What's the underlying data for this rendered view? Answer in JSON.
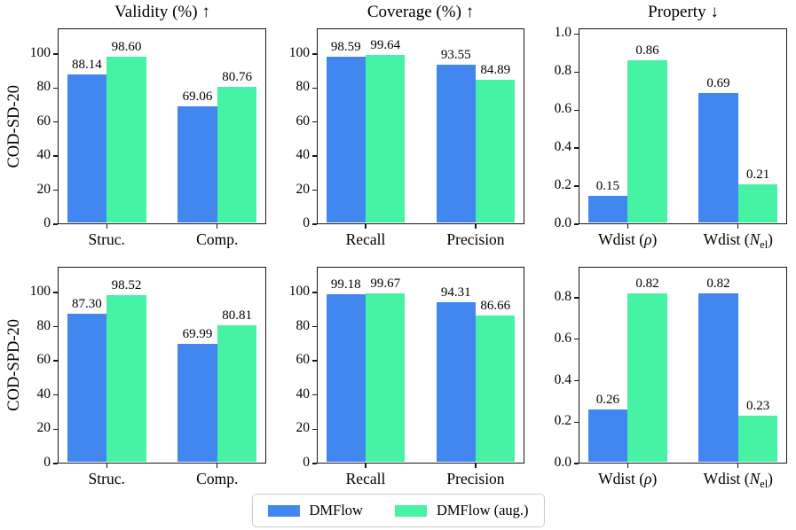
{
  "figure": {
    "background": "#ffffff"
  },
  "legend": {
    "position": "lower center",
    "items": [
      {
        "label": "DMFlow",
        "color": "#4287f0"
      },
      {
        "label": "DMFlow (aug.)",
        "color": "#46f2a3"
      }
    ]
  },
  "chart_data": [
    {
      "type": "bar",
      "row_label": "COD-SD-20",
      "title": "Validity (%) ↑",
      "categories": [
        "Struc.",
        "Comp."
      ],
      "series": [
        {
          "name": "DMFlow",
          "values": [
            88.14,
            69.06
          ]
        },
        {
          "name": "DMFlow (aug.)",
          "values": [
            98.6,
            80.76
          ]
        }
      ],
      "ylim": [
        0,
        115
      ],
      "yticks": [
        "0",
        "20",
        "40",
        "60",
        "80",
        "100"
      ],
      "grid": false
    },
    {
      "type": "bar",
      "title": "Coverage (%) ↑",
      "categories": [
        "Recall",
        "Precision"
      ],
      "series": [
        {
          "name": "DMFlow",
          "values": [
            98.59,
            93.55
          ]
        },
        {
          "name": "DMFlow (aug.)",
          "values": [
            99.64,
            84.89
          ]
        }
      ],
      "ylim": [
        0,
        115
      ],
      "yticks": [
        "0",
        "20",
        "40",
        "60",
        "80",
        "100"
      ],
      "grid": false
    },
    {
      "type": "bar",
      "title": "Property ↓",
      "categories": [
        [
          {
            "t": "Wdist ("
          },
          {
            "t": "ρ",
            "i": true
          },
          {
            "t": ")"
          }
        ],
        [
          {
            "t": "Wdist ("
          },
          {
            "t": "N",
            "i": true
          },
          {
            "t": "el",
            "sub": true
          },
          {
            "t": ")"
          }
        ]
      ],
      "series": [
        {
          "name": "DMFlow",
          "values": [
            0.15,
            0.69
          ]
        },
        {
          "name": "DMFlow (aug.)",
          "values": [
            0.86,
            0.21
          ]
        }
      ],
      "ylim": [
        0,
        1.03
      ],
      "yticks": [
        "0.0",
        "0.2",
        "0.4",
        "0.6",
        "0.8",
        "1.0"
      ],
      "grid": false
    },
    {
      "type": "bar",
      "row_label": "COD-SPD-20",
      "categories": [
        "Struc.",
        "Comp."
      ],
      "series": [
        {
          "name": "DMFlow",
          "values": [
            87.3,
            69.99
          ]
        },
        {
          "name": "DMFlow (aug.)",
          "values": [
            98.52,
            80.81
          ]
        }
      ],
      "ylim": [
        0,
        115
      ],
      "yticks": [
        "0",
        "20",
        "40",
        "60",
        "80",
        "100"
      ],
      "grid": false
    },
    {
      "type": "bar",
      "categories": [
        "Recall",
        "Precision"
      ],
      "series": [
        {
          "name": "DMFlow",
          "values": [
            99.18,
            94.31
          ]
        },
        {
          "name": "DMFlow (aug.)",
          "values": [
            99.67,
            86.66
          ]
        }
      ],
      "ylim": [
        0,
        115
      ],
      "yticks": [
        "0",
        "20",
        "40",
        "60",
        "80",
        "100"
      ],
      "grid": false
    },
    {
      "type": "bar",
      "categories": [
        [
          {
            "t": "Wdist ("
          },
          {
            "t": "ρ",
            "i": true
          },
          {
            "t": ")"
          }
        ],
        [
          {
            "t": "Wdist ("
          },
          {
            "t": "N",
            "i": true
          },
          {
            "t": "el",
            "sub": true
          },
          {
            "t": ")"
          }
        ]
      ],
      "series": [
        {
          "name": "DMFlow",
          "values": [
            0.26,
            0.82
          ]
        },
        {
          "name": "DMFlow (aug.)",
          "values": [
            0.82,
            0.23
          ]
        }
      ],
      "ylim": [
        0,
        0.95
      ],
      "yticks": [
        "0.0",
        "0.2",
        "0.4",
        "0.6",
        "0.8"
      ],
      "grid": false
    }
  ]
}
